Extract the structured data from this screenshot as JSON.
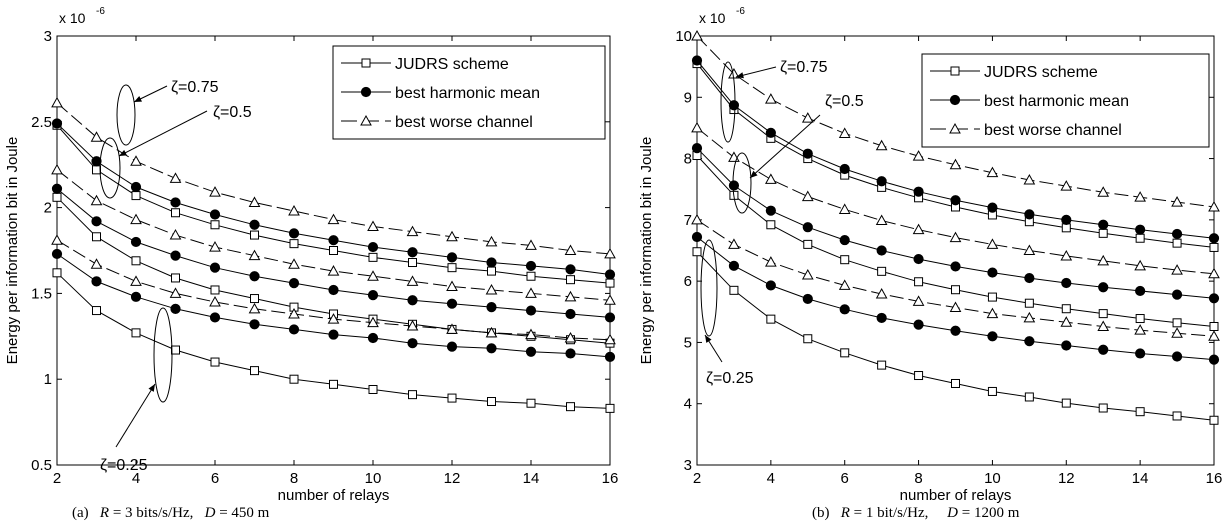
{
  "figure": {
    "captions": [
      {
        "label": "(a)",
        "r_sym": "R",
        "r_text": "= 3 bits/s/Hz,",
        "d_sym": "D",
        "d_text": "= 450 m"
      },
      {
        "label": "(b)",
        "r_sym": "R",
        "r_text": "= 1 bit/s/Hz,",
        "d_sym": "D",
        "d_text": "= 1200 m"
      }
    ]
  },
  "chart_data": [
    {
      "type": "line",
      "xlabel": "number of relays",
      "ylabel": "Energy per information bit in Joule",
      "y_exponent_label": "x 10",
      "y_exponent": "-6",
      "xlim": [
        2,
        16
      ],
      "ylim": [
        0.5,
        3
      ],
      "xticks": [
        2,
        4,
        6,
        8,
        10,
        12,
        14,
        16
      ],
      "yticks": [
        0.5,
        1,
        1.5,
        2,
        2.5,
        3
      ],
      "ytick_labels": [
        "0.5",
        "1",
        "1.5",
        "2",
        "2.5",
        "3"
      ],
      "grid": false,
      "legend_position": "top-right",
      "x": [
        2,
        3,
        4,
        5,
        6,
        7,
        8,
        9,
        10,
        11,
        12,
        13,
        14,
        15,
        16
      ],
      "legend": [
        {
          "name": "JUDRS scheme",
          "marker": "square",
          "dash": "solid"
        },
        {
          "name": "best harmonic mean",
          "marker": "filled-circle",
          "dash": "solid"
        },
        {
          "name": "best worse channel",
          "marker": "triangle",
          "dash": "dashed"
        }
      ],
      "series": [
        {
          "group": "ζ=0.75",
          "scheme": "JUDRS scheme",
          "values": [
            2.48,
            2.22,
            2.07,
            1.97,
            1.9,
            1.84,
            1.79,
            1.75,
            1.71,
            1.68,
            1.65,
            1.63,
            1.6,
            1.58,
            1.56
          ]
        },
        {
          "group": "ζ=0.75",
          "scheme": "best harmonic mean",
          "values": [
            2.49,
            2.27,
            2.12,
            2.03,
            1.96,
            1.9,
            1.85,
            1.81,
            1.77,
            1.74,
            1.71,
            1.68,
            1.66,
            1.64,
            1.61
          ]
        },
        {
          "group": "ζ=0.75",
          "scheme": "best worse channel",
          "values": [
            2.61,
            2.41,
            2.27,
            2.17,
            2.09,
            2.03,
            1.98,
            1.93,
            1.89,
            1.86,
            1.83,
            1.8,
            1.78,
            1.75,
            1.73
          ]
        },
        {
          "group": "ζ=0.5",
          "scheme": "JUDRS scheme",
          "values": [
            2.06,
            1.83,
            1.69,
            1.59,
            1.52,
            1.47,
            1.42,
            1.38,
            1.35,
            1.32,
            1.29,
            1.27,
            1.25,
            1.23,
            1.21
          ]
        },
        {
          "group": "ζ=0.5",
          "scheme": "best harmonic mean",
          "values": [
            2.11,
            1.92,
            1.8,
            1.72,
            1.65,
            1.6,
            1.56,
            1.52,
            1.49,
            1.46,
            1.44,
            1.42,
            1.4,
            1.38,
            1.36
          ]
        },
        {
          "group": "ζ=0.5",
          "scheme": "best worse channel",
          "values": [
            2.22,
            2.04,
            1.93,
            1.84,
            1.77,
            1.72,
            1.67,
            1.63,
            1.6,
            1.57,
            1.54,
            1.52,
            1.5,
            1.48,
            1.46
          ]
        },
        {
          "group": "ζ=0.25",
          "scheme": "JUDRS scheme",
          "values": [
            1.62,
            1.4,
            1.27,
            1.17,
            1.1,
            1.05,
            1.0,
            0.97,
            0.94,
            0.91,
            0.89,
            0.87,
            0.86,
            0.84,
            0.83
          ]
        },
        {
          "group": "ζ=0.25",
          "scheme": "best harmonic mean",
          "values": [
            1.73,
            1.57,
            1.48,
            1.41,
            1.36,
            1.32,
            1.29,
            1.26,
            1.24,
            1.21,
            1.19,
            1.18,
            1.16,
            1.15,
            1.13
          ]
        },
        {
          "group": "ζ=0.25",
          "scheme": "best worse channel",
          "values": [
            1.81,
            1.67,
            1.57,
            1.5,
            1.45,
            1.41,
            1.38,
            1.35,
            1.33,
            1.31,
            1.29,
            1.27,
            1.26,
            1.24,
            1.23
          ]
        }
      ],
      "annotations": [
        "ζ=0.75",
        "ζ=0.5",
        "ζ=0.25"
      ]
    },
    {
      "type": "line",
      "xlabel": "number of relays",
      "ylabel": "Energy per information bit in Joule",
      "y_exponent_label": "x 10",
      "y_exponent": "-6",
      "xlim": [
        2,
        16
      ],
      "ylim": [
        3,
        10
      ],
      "xticks": [
        2,
        4,
        6,
        8,
        10,
        12,
        14,
        16
      ],
      "yticks": [
        3,
        4,
        5,
        6,
        7,
        8,
        9,
        10
      ],
      "ytick_labels": [
        "3",
        "4",
        "5",
        "6",
        "7",
        "8",
        "9",
        "10"
      ],
      "grid": false,
      "legend_position": "top-right",
      "x": [
        2,
        3,
        4,
        5,
        6,
        7,
        8,
        9,
        10,
        11,
        12,
        13,
        14,
        15,
        16
      ],
      "legend": [
        {
          "name": "JUDRS scheme",
          "marker": "square",
          "dash": "solid"
        },
        {
          "name": "best harmonic mean",
          "marker": "filled-circle",
          "dash": "solid"
        },
        {
          "name": "best worse channel",
          "marker": "triangle",
          "dash": "dashed"
        }
      ],
      "series": [
        {
          "group": "ζ=0.75",
          "scheme": "JUDRS scheme",
          "values": [
            9.55,
            8.8,
            8.33,
            8.0,
            7.73,
            7.53,
            7.36,
            7.21,
            7.08,
            6.97,
            6.87,
            6.78,
            6.7,
            6.62,
            6.55
          ]
        },
        {
          "group": "ζ=0.75",
          "scheme": "best harmonic mean",
          "values": [
            9.6,
            8.87,
            8.42,
            8.08,
            7.83,
            7.63,
            7.46,
            7.32,
            7.2,
            7.09,
            7.0,
            6.92,
            6.84,
            6.77,
            6.7
          ]
        },
        {
          "group": "ζ=0.75",
          "scheme": "best worse channel",
          "values": [
            10.0,
            9.38,
            8.97,
            8.66,
            8.41,
            8.21,
            8.04,
            7.9,
            7.77,
            7.65,
            7.55,
            7.45,
            7.37,
            7.29,
            7.21
          ]
        },
        {
          "group": "ζ=0.5",
          "scheme": "JUDRS scheme",
          "values": [
            8.05,
            7.4,
            6.92,
            6.6,
            6.35,
            6.16,
            5.99,
            5.86,
            5.74,
            5.64,
            5.55,
            5.47,
            5.39,
            5.32,
            5.26
          ]
        },
        {
          "group": "ζ=0.5",
          "scheme": "best harmonic mean",
          "values": [
            8.17,
            7.56,
            7.15,
            6.88,
            6.67,
            6.5,
            6.36,
            6.24,
            6.14,
            6.05,
            5.97,
            5.9,
            5.84,
            5.78,
            5.72
          ]
        },
        {
          "group": "ζ=0.5",
          "scheme": "best worse channel",
          "values": [
            8.5,
            8.02,
            7.66,
            7.38,
            7.17,
            6.99,
            6.84,
            6.71,
            6.6,
            6.5,
            6.41,
            6.33,
            6.25,
            6.18,
            6.12
          ]
        },
        {
          "group": "ζ=0.25",
          "scheme": "JUDRS scheme",
          "values": [
            6.48,
            5.85,
            5.38,
            5.06,
            4.83,
            4.63,
            4.46,
            4.33,
            4.2,
            4.11,
            4.01,
            3.93,
            3.87,
            3.8,
            3.73
          ]
        },
        {
          "group": "ζ=0.25",
          "scheme": "best harmonic mean",
          "values": [
            6.72,
            6.25,
            5.93,
            5.71,
            5.54,
            5.4,
            5.29,
            5.19,
            5.1,
            5.02,
            4.95,
            4.88,
            4.82,
            4.77,
            4.72
          ]
        },
        {
          "group": "ζ=0.25",
          "scheme": "best worse channel",
          "values": [
            7.0,
            6.6,
            6.31,
            6.1,
            5.93,
            5.79,
            5.67,
            5.57,
            5.47,
            5.4,
            5.33,
            5.26,
            5.2,
            5.15,
            5.1
          ]
        }
      ],
      "annotations": [
        "ζ=0.75",
        "ζ=0.5",
        "ζ=0.25"
      ]
    }
  ]
}
